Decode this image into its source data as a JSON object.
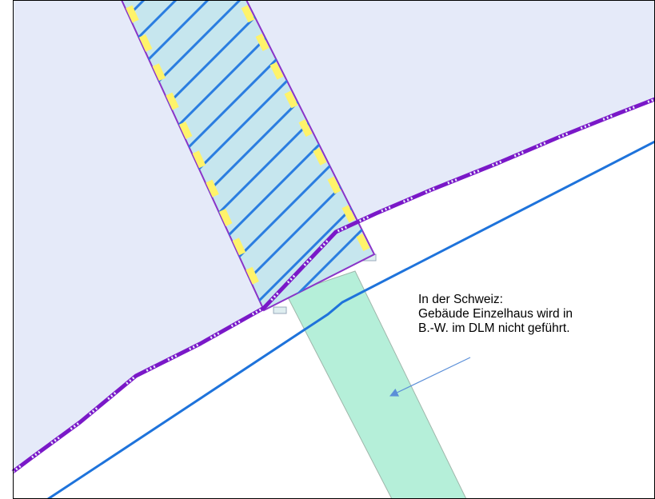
{
  "annotation": {
    "lines": [
      "In der Schweiz:",
      "Gebäude Einzelhaus wird in",
      "B.-W. im DLM nicht geführt."
    ]
  },
  "colors": {
    "area_fill": "#e5eaf9",
    "white_band": "#ffffff",
    "hatched_building_fill": "#c6e6ee",
    "hatch_lines": "#2a7de0",
    "building_outline": "#8a34c8",
    "yellow_marks": "#fff36a",
    "border_line": "#7a18c8",
    "border_dots": "#e8eefa",
    "green_building": "#b5efd9",
    "green_outline": "#9fb6aa",
    "road_line": "#1e73db",
    "arrow": "#5b8fd8",
    "frame": "#000000"
  },
  "icons": {
    "arrow": "arrow-left-down-icon"
  }
}
